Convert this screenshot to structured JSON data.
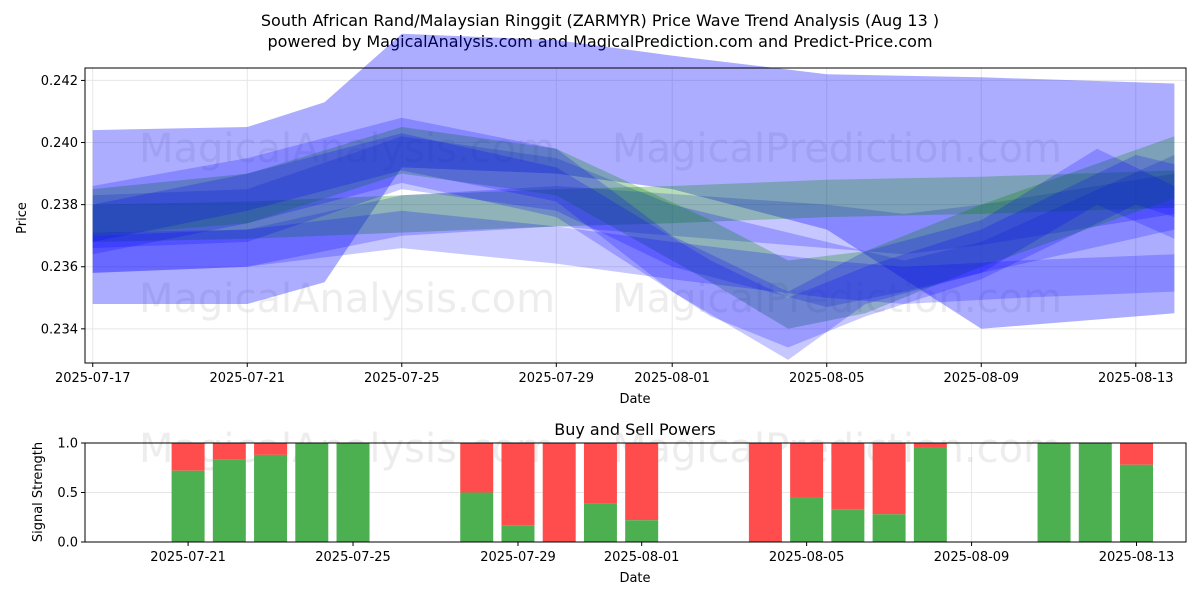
{
  "title_line1": "South African Rand/Malaysian Ringgit (ZARMYR) Price Wave Trend Analysis (Aug 13 )",
  "title_line2": "powered by MagicalAnalysis.com and MagicalPrediction.com and Predict-Price.com",
  "watermarks": [
    "MagicalAnalysis.com",
    "MagicalPrediction.com"
  ],
  "colors": {
    "blue_band": "#0000ff",
    "green_band": "#008000",
    "buy": "#4caf50",
    "sell": "#ff4d4d",
    "grid": "#e6e6e6"
  },
  "chart_data": [
    {
      "type": "area",
      "xlabel": "Date",
      "ylabel": "Price",
      "xlim": [
        "2025-07-17",
        "2025-08-14"
      ],
      "ylim": [
        0.2329,
        0.2424
      ],
      "x_ticks": [
        "2025-07-17",
        "2025-07-21",
        "2025-07-25",
        "2025-07-29",
        "2025-08-01",
        "2025-08-05",
        "2025-08-09",
        "2025-08-13"
      ],
      "y_ticks": [
        0.234,
        0.236,
        0.238,
        0.24,
        0.242
      ],
      "grid": true,
      "bands": [
        {
          "color": "blue",
          "x": [
            "2025-07-17",
            "2025-07-21",
            "2025-07-23",
            "2025-07-25",
            "2025-07-29",
            "2025-08-01",
            "2025-08-05",
            "2025-08-09",
            "2025-08-14"
          ],
          "upper": [
            0.2404,
            0.2405,
            0.2413,
            0.2435,
            0.2433,
            0.2428,
            0.2422,
            0.2421,
            0.2419
          ],
          "lower": [
            0.2348,
            0.2348,
            0.2355,
            0.2392,
            0.239,
            0.2385,
            0.2372,
            0.234,
            0.2345
          ]
        },
        {
          "color": "blue",
          "x": [
            "2025-07-17",
            "2025-07-21",
            "2025-07-25",
            "2025-07-29",
            "2025-08-05",
            "2025-08-07",
            "2025-08-09",
            "2025-08-14"
          ],
          "upper": [
            0.2371,
            0.2372,
            0.2383,
            0.2386,
            0.238,
            0.2377,
            0.238,
            0.239
          ],
          "lower": [
            0.2358,
            0.236,
            0.237,
            0.2373,
            0.2366,
            0.2364,
            0.2367,
            0.2377
          ]
        },
        {
          "color": "green",
          "x": [
            "2025-07-17",
            "2025-07-21",
            "2025-07-25",
            "2025-07-29",
            "2025-08-01",
            "2025-08-05",
            "2025-08-09",
            "2025-08-14"
          ],
          "upper": [
            0.238,
            0.2381,
            0.2383,
            0.2385,
            0.2386,
            0.2388,
            0.2389,
            0.2391
          ],
          "lower": [
            0.2368,
            0.2369,
            0.2371,
            0.2373,
            0.2374,
            0.2376,
            0.2377,
            0.2379
          ]
        },
        {
          "color": "blue",
          "x": [
            "2025-07-17",
            "2025-07-21",
            "2025-07-25",
            "2025-07-29",
            "2025-08-01",
            "2025-08-05",
            "2025-08-07",
            "2025-08-09",
            "2025-08-14"
          ],
          "upper": [
            0.2383,
            0.2385,
            0.2402,
            0.2395,
            0.238,
            0.2368,
            0.2362,
            0.2368,
            0.2396
          ],
          "lower": [
            0.2366,
            0.2368,
            0.2385,
            0.2378,
            0.236,
            0.2347,
            0.2352,
            0.2358,
            0.2372
          ]
        },
        {
          "color": "green",
          "x": [
            "2025-07-17",
            "2025-07-21",
            "2025-07-25",
            "2025-07-29",
            "2025-08-02",
            "2025-08-04",
            "2025-08-06",
            "2025-08-09",
            "2025-08-14"
          ],
          "upper": [
            0.2385,
            0.239,
            0.2405,
            0.2398,
            0.2375,
            0.2362,
            0.2365,
            0.238,
            0.2402
          ],
          "lower": [
            0.237,
            0.2374,
            0.239,
            0.2383,
            0.2355,
            0.234,
            0.2345,
            0.236,
            0.2382
          ]
        },
        {
          "color": "blue",
          "x": [
            "2025-07-17",
            "2025-07-21",
            "2025-07-25",
            "2025-07-29",
            "2025-08-01",
            "2025-08-04",
            "2025-08-06",
            "2025-08-09",
            "2025-08-12",
            "2025-08-14"
          ],
          "upper": [
            0.2386,
            0.2395,
            0.2408,
            0.2398,
            0.237,
            0.2352,
            0.2365,
            0.2375,
            0.2398,
            0.2386
          ],
          "lower": [
            0.2368,
            0.2378,
            0.2391,
            0.2381,
            0.2352,
            0.233,
            0.2348,
            0.2358,
            0.238,
            0.2369
          ]
        },
        {
          "color": "blue",
          "x": [
            "2025-07-17",
            "2025-07-21",
            "2025-07-25",
            "2025-07-29",
            "2025-08-02",
            "2025-08-04",
            "2025-08-06",
            "2025-08-09",
            "2025-08-13",
            "2025-08-14"
          ],
          "upper": [
            0.238,
            0.239,
            0.2403,
            0.2392,
            0.2362,
            0.235,
            0.236,
            0.2372,
            0.2396,
            0.2393
          ],
          "lower": [
            0.2364,
            0.2374,
            0.2387,
            0.2376,
            0.2344,
            0.2334,
            0.2344,
            0.2356,
            0.238,
            0.2376
          ]
        },
        {
          "color": "blue",
          "x": [
            "2025-07-17",
            "2025-07-21",
            "2025-07-25",
            "2025-07-29",
            "2025-08-01",
            "2025-08-05",
            "2025-08-07",
            "2025-08-10",
            "2025-08-14"
          ],
          "upper": [
            0.237,
            0.2372,
            0.2378,
            0.2373,
            0.2368,
            0.2362,
            0.236,
            0.2362,
            0.2364
          ],
          "lower": [
            0.2358,
            0.236,
            0.2366,
            0.2361,
            0.2356,
            0.235,
            0.2348,
            0.235,
            0.2352
          ]
        }
      ]
    },
    {
      "type": "bar",
      "title": "Buy and Sell Powers",
      "xlabel": "Date",
      "ylabel": "Signal Strength",
      "ylim": [
        0,
        1
      ],
      "y_ticks": [
        "0.0",
        "0.5",
        "1.0"
      ],
      "x_ticks": [
        "2025-07-21",
        "2025-07-25",
        "2025-07-29",
        "2025-08-01",
        "2025-08-05",
        "2025-08-09",
        "2025-08-13"
      ],
      "grid": true,
      "series": [
        {
          "name": "buy"
        },
        {
          "name": "sell"
        }
      ],
      "bars": [
        {
          "date": "2025-07-18",
          "buy": 0.72
        },
        {
          "date": "2025-07-19",
          "buy": 0.83
        },
        {
          "date": "2025-07-20",
          "buy": 0.88
        },
        {
          "date": "2025-07-21",
          "buy": 1.0
        },
        {
          "date": "2025-07-22",
          "buy": 1.0
        },
        {
          "date": "2025-07-25",
          "buy": 0.5
        },
        {
          "date": "2025-07-26",
          "buy": 0.17
        },
        {
          "date": "2025-07-27",
          "buy": 0.0
        },
        {
          "date": "2025-07-28",
          "buy": 0.39
        },
        {
          "date": "2025-07-29",
          "buy": 0.22
        },
        {
          "date": "2025-08-01",
          "buy": 0.0
        },
        {
          "date": "2025-08-02",
          "buy": 0.45
        },
        {
          "date": "2025-08-03",
          "buy": 0.33
        },
        {
          "date": "2025-08-04",
          "buy": 0.28
        },
        {
          "date": "2025-08-05",
          "buy": 0.95
        },
        {
          "date": "2025-08-08",
          "buy": 1.0
        },
        {
          "date": "2025-08-09",
          "buy": 1.0
        },
        {
          "date": "2025-08-10",
          "buy": 0.78
        }
      ]
    }
  ]
}
